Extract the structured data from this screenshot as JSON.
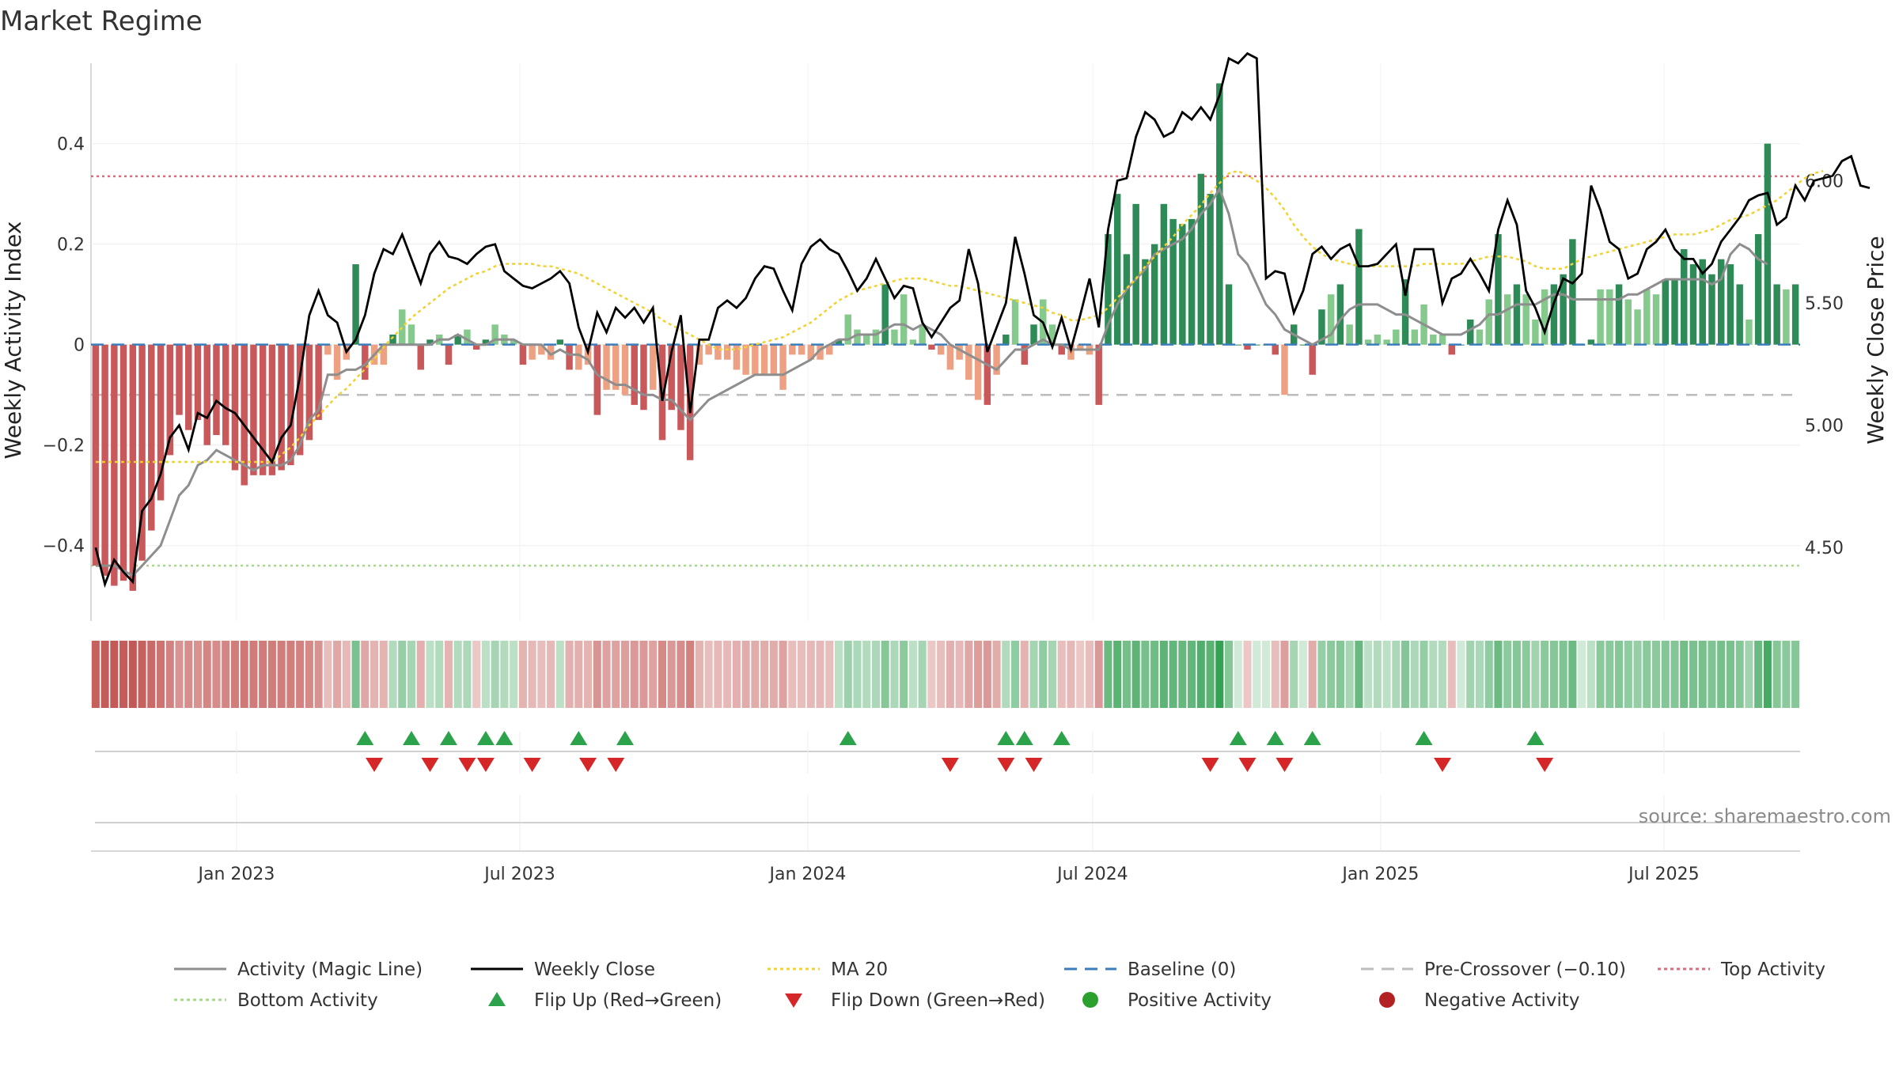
{
  "chart_data": {
    "type": "bar",
    "title": "Market Regime",
    "ylabel_left": "Weekly Activity Index",
    "ylabel_right": "Weekly Close Price",
    "source": "source: sharemaestro.com",
    "ylim_left": [
      -0.55,
      0.56
    ],
    "ylim_right": [
      4.2,
      6.48
    ],
    "yticks_left": [
      -0.4,
      -0.2,
      0,
      0.2,
      0.4
    ],
    "yticks_left_labels": [
      "−0.4",
      "−0.2",
      "0",
      "0.2",
      "0.4"
    ],
    "yticks_right": [
      4.5,
      5.0,
      5.5,
      6.0
    ],
    "yticks_right_labels": [
      "4.50",
      "5.00",
      "5.50",
      "6.00"
    ],
    "date_range": [
      "2022-09-30",
      "2025-09-26"
    ],
    "xticks": [
      {
        "label": "Jan 2023",
        "date": "2023-01-01"
      },
      {
        "label": "Jul 2023",
        "date": "2023-07-01"
      },
      {
        "label": "Jan 2024",
        "date": "2024-01-01"
      },
      {
        "label": "Jul 2024",
        "date": "2024-07-01"
      },
      {
        "label": "Jan 2025",
        "date": "2025-01-01"
      },
      {
        "label": "Jul 2025",
        "date": "2025-07-01"
      }
    ],
    "reference_lines": {
      "top_activity": 0.335,
      "bottom_activity": -0.44,
      "baseline": 0,
      "pre_crossover": -0.1
    },
    "activity": [
      -0.44,
      -0.46,
      -0.48,
      -0.47,
      -0.49,
      -0.43,
      -0.37,
      -0.31,
      -0.22,
      -0.14,
      -0.17,
      -0.15,
      -0.2,
      -0.18,
      -0.2,
      -0.25,
      -0.28,
      -0.26,
      -0.26,
      -0.26,
      -0.25,
      -0.24,
      -0.22,
      -0.19,
      -0.15,
      -0.02,
      -0.07,
      -0.03,
      0.16,
      -0.07,
      -0.04,
      -0.04,
      0.02,
      0.07,
      0.04,
      -0.05,
      0.01,
      0.02,
      -0.04,
      0.02,
      0.03,
      -0.01,
      0.01,
      0.04,
      0.02,
      0.01,
      -0.04,
      -0.03,
      -0.02,
      -0.03,
      0.01,
      -0.05,
      -0.05,
      -0.04,
      -0.14,
      -0.09,
      -0.09,
      -0.1,
      -0.12,
      -0.13,
      -0.09,
      -0.19,
      -0.13,
      -0.17,
      -0.23,
      -0.04,
      -0.02,
      -0.03,
      -0.03,
      -0.05,
      -0.06,
      -0.06,
      -0.06,
      -0.06,
      -0.09,
      -0.02,
      -0.02,
      -0.03,
      -0.03,
      -0.02,
      0.01,
      0.06,
      0.03,
      0.02,
      0.03,
      0.12,
      0.03,
      0.1,
      0.01,
      0.04,
      -0.01,
      -0.02,
      -0.05,
      -0.03,
      -0.07,
      -0.11,
      -0.12,
      -0.06,
      0.02,
      0.09,
      -0.04,
      0.04,
      0.09,
      0.04,
      -0.02,
      -0.03,
      -0.01,
      -0.02,
      -0.12,
      0.22,
      0.3,
      0.18,
      0.28,
      0.17,
      0.2,
      0.28,
      0.25,
      0.24,
      0.25,
      0.34,
      0.3,
      0.52,
      0.12,
      0.0,
      -0.01,
      0.0,
      0.0,
      -0.02,
      -0.1,
      0.04,
      0.0,
      -0.06,
      0.07,
      0.1,
      0.12,
      0.04,
      0.23,
      0.01,
      0.02,
      0.01,
      0.03,
      0.13,
      0.03,
      0.08,
      0.02,
      0.02,
      -0.02,
      0.0,
      0.05,
      0.03,
      0.09,
      0.22,
      0.1,
      0.12,
      0.1,
      0.05,
      0.11,
      0.12,
      0.14,
      0.21,
      0.0,
      0.01,
      0.11,
      0.11,
      0.12,
      0.09,
      0.07,
      0.11,
      0.1,
      0.13,
      0.13,
      0.19,
      0.16,
      0.17,
      0.14,
      0.17,
      0.16,
      0.12,
      0.05,
      0.22,
      0.4,
      0.12,
      0.11,
      0.12
    ],
    "activity_magic_line": [
      -0.44,
      -0.44,
      -0.44,
      -0.45,
      -0.46,
      -0.44,
      -0.42,
      -0.4,
      -0.35,
      -0.3,
      -0.28,
      -0.24,
      -0.23,
      -0.21,
      -0.22,
      -0.23,
      -0.24,
      -0.25,
      -0.24,
      -0.24,
      -0.24,
      -0.23,
      -0.2,
      -0.15,
      -0.13,
      -0.06,
      -0.06,
      -0.05,
      -0.05,
      -0.04,
      -0.02,
      0.0,
      0.0,
      0.0,
      0.0,
      0.0,
      0.0,
      0.01,
      0.01,
      0.02,
      0.01,
      0.0,
      0.0,
      0.01,
      0.01,
      0.01,
      0.0,
      0.0,
      0.0,
      -0.02,
      -0.01,
      -0.02,
      -0.02,
      -0.03,
      -0.06,
      -0.07,
      -0.08,
      -0.08,
      -0.09,
      -0.1,
      -0.1,
      -0.11,
      -0.11,
      -0.13,
      -0.15,
      -0.13,
      -0.11,
      -0.1,
      -0.09,
      -0.08,
      -0.07,
      -0.06,
      -0.06,
      -0.06,
      -0.06,
      -0.05,
      -0.04,
      -0.03,
      -0.01,
      0.0,
      0.01,
      0.01,
      0.02,
      0.02,
      0.02,
      0.03,
      0.04,
      0.04,
      0.03,
      0.04,
      0.03,
      0.02,
      0.0,
      -0.01,
      -0.02,
      -0.03,
      -0.04,
      -0.05,
      -0.03,
      -0.01,
      -0.01,
      0.0,
      0.01,
      0.0,
      0.0,
      -0.01,
      -0.01,
      -0.01,
      -0.01,
      0.04,
      0.08,
      0.11,
      0.13,
      0.15,
      0.18,
      0.19,
      0.2,
      0.21,
      0.23,
      0.26,
      0.28,
      0.31,
      0.26,
      0.18,
      0.16,
      0.12,
      0.08,
      0.06,
      0.03,
      0.02,
      0.01,
      0.0,
      0.01,
      0.02,
      0.05,
      0.07,
      0.08,
      0.08,
      0.08,
      0.07,
      0.06,
      0.06,
      0.05,
      0.04,
      0.03,
      0.02,
      0.02,
      0.02,
      0.03,
      0.04,
      0.06,
      0.06,
      0.07,
      0.08,
      0.08,
      0.08,
      0.09,
      0.1,
      0.1,
      0.09,
      0.09,
      0.09,
      0.09,
      0.09,
      0.09,
      0.1,
      0.1,
      0.11,
      0.12,
      0.13,
      0.13,
      0.13,
      0.13,
      0.13,
      0.12,
      0.13,
      0.18,
      0.2,
      0.19,
      0.17,
      0.16
    ],
    "weekly_close": [
      4.5,
      4.35,
      4.45,
      4.4,
      4.36,
      4.65,
      4.7,
      4.8,
      4.95,
      5.0,
      4.9,
      5.05,
      5.03,
      5.1,
      5.07,
      5.05,
      5.0,
      4.95,
      4.9,
      4.85,
      4.95,
      5.0,
      5.2,
      5.45,
      5.55,
      5.45,
      5.42,
      5.3,
      5.35,
      5.45,
      5.62,
      5.72,
      5.7,
      5.78,
      5.68,
      5.58,
      5.7,
      5.75,
      5.69,
      5.68,
      5.66,
      5.7,
      5.73,
      5.74,
      5.63,
      5.6,
      5.57,
      5.56,
      5.58,
      5.6,
      5.63,
      5.58,
      5.4,
      5.3,
      5.46,
      5.38,
      5.48,
      5.44,
      5.48,
      5.42,
      5.48,
      5.1,
      5.3,
      5.45,
      5.05,
      5.35,
      5.35,
      5.48,
      5.51,
      5.48,
      5.52,
      5.6,
      5.65,
      5.64,
      5.55,
      5.47,
      5.66,
      5.73,
      5.76,
      5.72,
      5.7,
      5.63,
      5.55,
      5.6,
      5.68,
      5.6,
      5.52,
      5.57,
      5.56,
      5.42,
      5.36,
      5.42,
      5.48,
      5.51,
      5.72,
      5.58,
      5.3,
      5.4,
      5.5,
      5.77,
      5.62,
      5.45,
      5.42,
      5.32,
      5.44,
      5.31,
      5.45,
      5.6,
      5.4,
      5.8,
      6.0,
      6.01,
      6.18,
      6.28,
      6.25,
      6.18,
      6.2,
      6.28,
      6.25,
      6.3,
      6.25,
      6.35,
      6.5,
      6.48,
      6.52,
      6.5,
      5.6,
      5.63,
      5.62,
      5.46,
      5.55,
      5.7,
      5.73,
      5.68,
      5.72,
      5.74,
      5.65,
      5.65,
      5.66,
      5.7,
      5.74,
      5.53,
      5.72,
      5.72,
      5.72,
      5.5,
      5.6,
      5.62,
      5.68,
      5.62,
      5.55,
      5.8,
      5.92,
      5.82,
      5.55,
      5.48,
      5.38,
      5.5,
      5.6,
      5.58,
      5.62,
      5.98,
      5.88,
      5.75,
      5.72,
      5.6,
      5.62,
      5.72,
      5.75,
      5.8,
      5.72,
      5.68,
      5.68,
      5.62,
      5.66,
      5.75,
      5.8,
      5.85,
      5.92,
      5.94,
      5.95,
      5.82,
      5.85,
      5.98,
      5.92,
      6.0,
      6.01,
      6.02,
      6.08,
      6.1,
      5.98,
      5.97
    ],
    "ma20": [
      4.85,
      4.85,
      4.85,
      4.85,
      4.85,
      4.85,
      4.85,
      4.85,
      4.85,
      4.85,
      4.85,
      4.85,
      4.85,
      4.85,
      4.85,
      4.85,
      4.85,
      4.85,
      4.85,
      4.85,
      4.88,
      4.91,
      4.95,
      5.0,
      5.04,
      5.08,
      5.12,
      5.15,
      5.19,
      5.23,
      5.27,
      5.32,
      5.36,
      5.4,
      5.44,
      5.47,
      5.5,
      5.53,
      5.56,
      5.58,
      5.6,
      5.62,
      5.63,
      5.65,
      5.66,
      5.66,
      5.66,
      5.66,
      5.65,
      5.65,
      5.64,
      5.63,
      5.62,
      5.6,
      5.58,
      5.56,
      5.54,
      5.52,
      5.5,
      5.48,
      5.46,
      5.43,
      5.41,
      5.39,
      5.37,
      5.35,
      5.33,
      5.31,
      5.31,
      5.31,
      5.32,
      5.33,
      5.34,
      5.35,
      5.36,
      5.38,
      5.4,
      5.42,
      5.45,
      5.48,
      5.51,
      5.53,
      5.55,
      5.56,
      5.57,
      5.58,
      5.59,
      5.6,
      5.6,
      5.6,
      5.59,
      5.58,
      5.57,
      5.57,
      5.56,
      5.55,
      5.54,
      5.53,
      5.52,
      5.51,
      5.5,
      5.49,
      5.48,
      5.46,
      5.45,
      5.43,
      5.43,
      5.44,
      5.45,
      5.48,
      5.52,
      5.56,
      5.6,
      5.65,
      5.69,
      5.73,
      5.77,
      5.82,
      5.86,
      5.9,
      5.95,
      5.99,
      6.03,
      6.04,
      6.02,
      6.0,
      5.97,
      5.93,
      5.88,
      5.82,
      5.77,
      5.73,
      5.7,
      5.68,
      5.67,
      5.66,
      5.65,
      5.65,
      5.65,
      5.65,
      5.65,
      5.65,
      5.65,
      5.66,
      5.66,
      5.66,
      5.66,
      5.66,
      5.67,
      5.68,
      5.69,
      5.69,
      5.69,
      5.68,
      5.67,
      5.65,
      5.64,
      5.64,
      5.64,
      5.66,
      5.68,
      5.69,
      5.7,
      5.71,
      5.72,
      5.73,
      5.74,
      5.75,
      5.76,
      5.77,
      5.78,
      5.78,
      5.78,
      5.79,
      5.8,
      5.82,
      5.84,
      5.85,
      5.86,
      5.88,
      5.9,
      5.92,
      5.95,
      5.98,
      6.01,
      6.03,
      6.04
    ],
    "flip_up_weeks": [
      29,
      34,
      38,
      42,
      44,
      52,
      57,
      81,
      98,
      100,
      104,
      123,
      127,
      131,
      143,
      155
    ],
    "flip_down_weeks": [
      30,
      36,
      40,
      42,
      47,
      53,
      56,
      92,
      98,
      101,
      120,
      124,
      128,
      145,
      156
    ],
    "legend": [
      {
        "label": "Activity (Magic Line)",
        "kind": "line",
        "color": "#8e8e8e"
      },
      {
        "label": "Weekly Close",
        "kind": "line",
        "color": "#000000"
      },
      {
        "label": "MA 20",
        "kind": "dotted",
        "color": "#f0d230"
      },
      {
        "label": "Baseline (0)",
        "kind": "dashed",
        "color": "#3b7dbd"
      },
      {
        "label": "Pre-Crossover (−0.10)",
        "kind": "dashed",
        "color": "#bdbdbd"
      },
      {
        "label": "Top Activity",
        "kind": "dotted",
        "color": "#e06a7a"
      },
      {
        "label": "Bottom Activity",
        "kind": "dotted",
        "color": "#a8d88b"
      },
      {
        "label": "Flip Up (Red→Green)",
        "kind": "triangle-up",
        "color": "#2ca24a"
      },
      {
        "label": "Flip Down (Green→Red)",
        "kind": "triangle-down",
        "color": "#d62728"
      },
      {
        "label": "Positive Activity",
        "kind": "dot",
        "color": "#2ca02c"
      },
      {
        "label": "Negative Activity",
        "kind": "dot",
        "color": "#b22222"
      }
    ],
    "colors": {
      "positive_strong": "#2e8b57",
      "positive_weak": "#86c98c",
      "negative_strong": "#c9585a",
      "negative_weak": "#eea082",
      "magic_line": "#8e8e8e",
      "close": "#000000",
      "ma20": "#f0d230",
      "baseline": "#3b7dbd",
      "pre_crossover": "#bdbdbd",
      "top_activity": "#e06a7a",
      "bottom_activity": "#a8d88b",
      "flip_up": "#2ca24a",
      "flip_down": "#d62728"
    }
  }
}
